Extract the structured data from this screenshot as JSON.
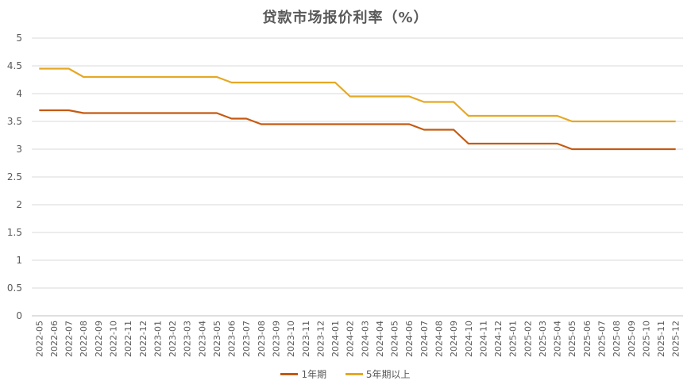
{
  "chart_data": {
    "type": "line",
    "title": "贷款市场报价利率（%）",
    "xlabel": "",
    "ylabel": "",
    "ylim": [
      0,
      5
    ],
    "yticks": [
      "0",
      "0.5",
      "1",
      "1.5",
      "2",
      "2.5",
      "3",
      "3.5",
      "4",
      "4.5",
      "5"
    ],
    "grid": true,
    "legend_position": "bottom",
    "x": [
      "2022-05",
      "2022-06",
      "2022-07",
      "2022-08",
      "2022-09",
      "2022-10",
      "2022-11",
      "2022-12",
      "2023-01",
      "2023-02",
      "2023-03",
      "2023-04",
      "2023-05",
      "2023-06",
      "2023-07",
      "2023-08",
      "2023-09",
      "2023-10",
      "2023-11",
      "2023-12",
      "2024-01",
      "2024-02",
      "2024-03",
      "2024-04",
      "2024-05",
      "2024-06",
      "2024-07",
      "2024-08",
      "2024-09",
      "2024-10",
      "2024-11",
      "2024-12",
      "2025-01",
      "2025-02",
      "2025-03",
      "2025-04",
      "2025-05",
      "2025-06",
      "2025-07",
      "2025-08",
      "2025-09",
      "2025-10",
      "2025-11",
      "2025-12"
    ],
    "series": [
      {
        "name": "1年期",
        "color": "#C55A11",
        "values": [
          3.7,
          3.7,
          3.7,
          3.65,
          3.65,
          3.65,
          3.65,
          3.65,
          3.65,
          3.65,
          3.65,
          3.65,
          3.65,
          3.55,
          3.55,
          3.45,
          3.45,
          3.45,
          3.45,
          3.45,
          3.45,
          3.45,
          3.45,
          3.45,
          3.45,
          3.45,
          3.35,
          3.35,
          3.35,
          3.1,
          3.1,
          3.1,
          3.1,
          3.1,
          3.1,
          3.1,
          3.0,
          3.0,
          3.0,
          3.0,
          3.0,
          3.0,
          3.0,
          3.0
        ]
      },
      {
        "name": "5年期以上",
        "color": "#E5A823",
        "values": [
          4.45,
          4.45,
          4.45,
          4.3,
          4.3,
          4.3,
          4.3,
          4.3,
          4.3,
          4.3,
          4.3,
          4.3,
          4.3,
          4.2,
          4.2,
          4.2,
          4.2,
          4.2,
          4.2,
          4.2,
          4.2,
          3.95,
          3.95,
          3.95,
          3.95,
          3.95,
          3.85,
          3.85,
          3.85,
          3.6,
          3.6,
          3.6,
          3.6,
          3.6,
          3.6,
          3.6,
          3.5,
          3.5,
          3.5,
          3.5,
          3.5,
          3.5,
          3.5,
          3.5
        ]
      }
    ]
  }
}
